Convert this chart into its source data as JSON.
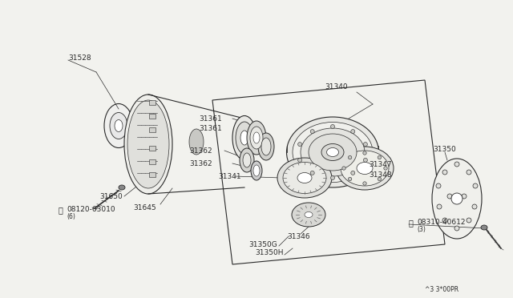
{
  "bg_color": "#f2f2ee",
  "line_color": "#2a2a2a",
  "watermark": "^3 3*00PR",
  "label_fs": 6.5,
  "small_fs": 6.0
}
